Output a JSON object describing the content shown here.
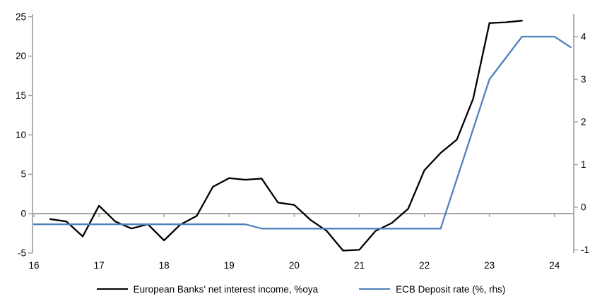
{
  "chart_data": {
    "type": "line",
    "title": "",
    "grid": "zero-line-only",
    "legend_position": "bottom-center",
    "x_axis": {
      "tick_labels": [
        "16",
        "17",
        "18",
        "19",
        "20",
        "21",
        "22",
        "23",
        "24"
      ],
      "tick_values": [
        16,
        17,
        18,
        19,
        20,
        21,
        22,
        23,
        24
      ],
      "range": [
        16,
        24.3
      ]
    },
    "left_axis": {
      "side": "left",
      "tick_values": [
        -5,
        0,
        5,
        10,
        15,
        20,
        25
      ],
      "range": [
        -5,
        25.2
      ]
    },
    "right_axis": {
      "side": "right",
      "tick_values": [
        -1,
        0,
        1,
        2,
        3,
        4
      ],
      "range": [
        -1.07,
        4.5
      ]
    },
    "series": [
      {
        "name": "European Banks' net interest income, %oya",
        "axis": "left",
        "color": "#000000",
        "frequency": "quarterly",
        "points": [
          [
            16.25,
            -0.7
          ],
          [
            16.5,
            -1.0
          ],
          [
            16.75,
            -2.9
          ],
          [
            17.0,
            1.0
          ],
          [
            17.25,
            -1.0
          ],
          [
            17.5,
            -1.9
          ],
          [
            17.75,
            -1.35
          ],
          [
            18.0,
            -3.4
          ],
          [
            18.25,
            -1.4
          ],
          [
            18.5,
            -0.3
          ],
          [
            18.75,
            3.4
          ],
          [
            19.0,
            4.5
          ],
          [
            19.25,
            4.3
          ],
          [
            19.5,
            4.45
          ],
          [
            19.75,
            1.4
          ],
          [
            20.0,
            1.1
          ],
          [
            20.25,
            -0.8
          ],
          [
            20.5,
            -2.2
          ],
          [
            20.75,
            -4.7
          ],
          [
            21.0,
            -4.6
          ],
          [
            21.25,
            -2.2
          ],
          [
            21.5,
            -1.2
          ],
          [
            21.75,
            0.6
          ],
          [
            22.0,
            5.5
          ],
          [
            22.25,
            7.7
          ],
          [
            22.5,
            9.4
          ],
          [
            22.75,
            14.6
          ],
          [
            23.0,
            24.2
          ],
          [
            23.25,
            24.3
          ],
          [
            23.5,
            24.5
          ]
        ]
      },
      {
        "name": "ECB Deposit rate (%, rhs)",
        "axis": "right",
        "color": "#4F81BD",
        "points": [
          [
            16.0,
            -0.4
          ],
          [
            19.25,
            -0.4
          ],
          [
            19.5,
            -0.5
          ],
          [
            22.25,
            -0.5
          ],
          [
            23.0,
            3.0
          ],
          [
            23.5,
            4.0
          ],
          [
            24.0,
            4.0
          ],
          [
            24.25,
            3.75
          ]
        ]
      }
    ]
  },
  "legend": {
    "items": [
      {
        "label": "European Banks' net interest income, %oya",
        "color": "#000000"
      },
      {
        "label": "ECB Deposit rate (%, rhs)",
        "color": "#4F81BD"
      }
    ]
  },
  "colors": {
    "background": "#FFFFFF",
    "axis": "#A6A6A6",
    "zero_line": "#A6A6A6",
    "series_black": "#000000",
    "series_blue": "#4F81BD"
  }
}
